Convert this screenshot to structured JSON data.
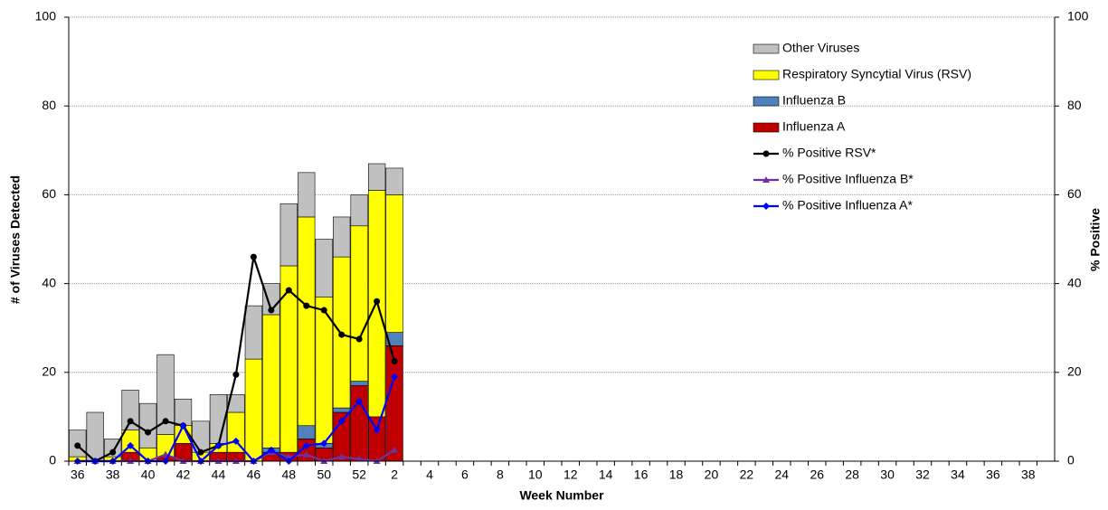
{
  "chart_data": {
    "type": "bar",
    "x_label": "Week Number",
    "y_label": "# of Viruses Detected",
    "y2_label": "% Positive",
    "categories": [
      "36",
      null,
      "38",
      null,
      "40",
      null,
      "42",
      null,
      "44",
      null,
      "46",
      null,
      "48",
      null,
      "50",
      null,
      "52",
      null,
      "2",
      null,
      "4",
      null,
      "6",
      null,
      "8",
      null,
      "10",
      null,
      "12",
      null,
      "14",
      null,
      "16",
      null,
      "18",
      null,
      "20",
      null,
      "22",
      null,
      "24",
      null,
      "26",
      null,
      "28",
      null,
      "30",
      null,
      "32",
      null,
      "34",
      null,
      "36",
      null,
      "38",
      null
    ],
    "ylim": [
      0,
      100
    ],
    "yticks": [
      0,
      20,
      40,
      60,
      80,
      100
    ],
    "y2lim": [
      0,
      100
    ],
    "y2ticks": [
      0,
      20,
      40,
      60,
      80,
      100
    ],
    "grid": true,
    "legend": "top-right",
    "series": [
      {
        "name": "Influenza A",
        "type": "bar",
        "color": "#c00000",
        "values": [
          0,
          0,
          0,
          2,
          0,
          1,
          4,
          0,
          2,
          2,
          0,
          2,
          2,
          5,
          3,
          11,
          17,
          10,
          26,
          null,
          null,
          null,
          null,
          null,
          null,
          null,
          null,
          null,
          null,
          null,
          null,
          null,
          null,
          null,
          null,
          null,
          null,
          null,
          null,
          null,
          null,
          null,
          null,
          null,
          null,
          null,
          null,
          null,
          null,
          null,
          null,
          null,
          null,
          null,
          null,
          null
        ]
      },
      {
        "name": "Influenza B",
        "type": "bar",
        "color": "#4f81bd",
        "values": [
          0,
          0,
          0,
          0,
          0,
          0,
          0,
          0,
          0,
          0,
          0,
          1,
          0,
          3,
          1,
          1,
          1,
          0,
          3,
          null,
          null,
          null,
          null,
          null,
          null,
          null,
          null,
          null,
          null,
          null,
          null,
          null,
          null,
          null,
          null,
          null,
          null,
          null,
          null,
          null,
          null,
          null,
          null,
          null,
          null,
          null,
          null,
          null,
          null,
          null,
          null,
          null,
          null,
          null,
          null,
          null
        ]
      },
      {
        "name": "Respiratory Syncytial Virus (RSV)",
        "type": "bar",
        "color": "#ffff00",
        "values": [
          1,
          0,
          1,
          5,
          3,
          5,
          4,
          2,
          2,
          9,
          23,
          30,
          42,
          47,
          33,
          34,
          35,
          51,
          31,
          null,
          null,
          null,
          null,
          null,
          null,
          null,
          null,
          null,
          null,
          null,
          null,
          null,
          null,
          null,
          null,
          null,
          null,
          null,
          null,
          null,
          null,
          null,
          null,
          null,
          null,
          null,
          null,
          null,
          null,
          null,
          null,
          null,
          null,
          null,
          null,
          null
        ]
      },
      {
        "name": "Other Viruses",
        "type": "bar",
        "color": "#c0c0c0",
        "values": [
          6,
          11,
          4,
          9,
          10,
          18,
          6,
          7,
          11,
          4,
          12,
          7,
          14,
          10,
          13,
          9,
          7,
          6,
          6,
          null,
          null,
          null,
          null,
          null,
          null,
          null,
          null,
          null,
          null,
          null,
          null,
          null,
          null,
          null,
          null,
          null,
          null,
          null,
          null,
          null,
          null,
          null,
          null,
          null,
          null,
          null,
          null,
          null,
          null,
          null,
          null,
          null,
          null,
          null,
          null,
          null
        ]
      },
      {
        "name": "% Positive RSV*",
        "type": "line",
        "axis": "y2",
        "color": "#000000",
        "marker": "circle",
        "values": [
          3.5,
          0,
          2,
          9,
          6.5,
          9,
          8,
          2,
          3.5,
          19.5,
          46,
          34,
          38.5,
          35,
          34,
          28.5,
          27.5,
          36,
          22.5,
          null,
          null,
          null,
          null,
          null,
          null,
          null,
          null,
          null,
          null,
          null,
          null,
          null,
          null,
          null,
          null,
          null,
          null,
          null,
          null,
          null,
          null,
          null,
          null,
          null,
          null,
          null,
          null,
          null,
          null,
          null,
          null,
          null,
          null,
          null,
          null,
          null
        ]
      },
      {
        "name": "% Positive Influenza B*",
        "type": "line",
        "axis": "y2",
        "color": "#7030a0",
        "marker": "triangle",
        "values": [
          0,
          0,
          0,
          0,
          0,
          1.5,
          0,
          0,
          0,
          0,
          0,
          2,
          1,
          1.5,
          0,
          1,
          0.5,
          0,
          2.5,
          null,
          null,
          null,
          null,
          null,
          null,
          null,
          null,
          null,
          null,
          null,
          null,
          null,
          null,
          null,
          null,
          null,
          null,
          null,
          null,
          null,
          null,
          null,
          null,
          null,
          null,
          null,
          null,
          null,
          null,
          null,
          null,
          null,
          null,
          null,
          null,
          null
        ]
      },
      {
        "name": "% Positive Influenza A*",
        "type": "line",
        "axis": "y2",
        "color": "#0000ff",
        "marker": "diamond",
        "values": [
          0,
          0,
          0,
          3.5,
          0,
          0,
          8,
          0,
          3.5,
          4.5,
          0,
          2.5,
          0,
          3.5,
          4,
          9,
          13.5,
          7,
          19,
          null,
          null,
          null,
          null,
          null,
          null,
          null,
          null,
          null,
          null,
          null,
          null,
          null,
          null,
          null,
          null,
          null,
          null,
          null,
          null,
          null,
          null,
          null,
          null,
          null,
          null,
          null,
          null,
          null,
          null,
          null,
          null,
          null,
          null,
          null,
          null,
          null
        ]
      }
    ]
  }
}
